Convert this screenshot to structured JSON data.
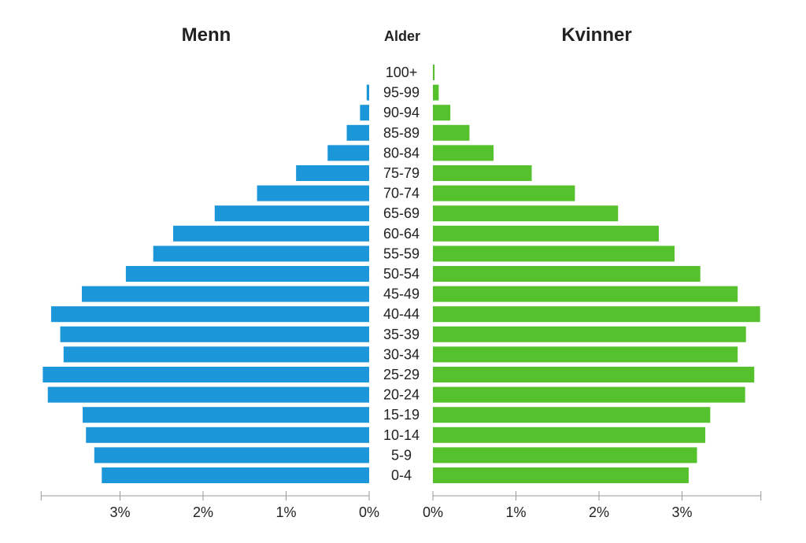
{
  "chart_data": {
    "type": "bar",
    "orientation": "horizontal-population-pyramid",
    "left_title": "Menn",
    "center_title": "Alder",
    "right_title": "Kvinner",
    "categories": [
      "0-4",
      "5-9",
      "10-14",
      "15-19",
      "20-24",
      "25-29",
      "30-34",
      "35-39",
      "40-44",
      "45-49",
      "50-54",
      "55-59",
      "60-64",
      "65-69",
      "70-74",
      "75-79",
      "80-84",
      "85-89",
      "90-94",
      "95-99",
      "100+"
    ],
    "series": [
      {
        "name": "Menn",
        "color": "#1a96d9",
        "values": [
          3.22,
          3.31,
          3.41,
          3.45,
          3.87,
          3.93,
          3.68,
          3.72,
          3.83,
          3.46,
          2.93,
          2.6,
          2.36,
          1.86,
          1.35,
          0.88,
          0.5,
          0.27,
          0.11,
          0.03,
          0.0
        ]
      },
      {
        "name": "Kvinner",
        "color": "#55c12d",
        "values": [
          3.08,
          3.18,
          3.28,
          3.34,
          3.76,
          3.87,
          3.67,
          3.77,
          3.94,
          3.67,
          3.22,
          2.91,
          2.72,
          2.23,
          1.71,
          1.19,
          0.73,
          0.44,
          0.21,
          0.07,
          0.02
        ]
      }
    ],
    "xlim": [
      0,
      3.95
    ],
    "left_ticks": [
      "3%",
      "2%",
      "1%",
      "0%"
    ],
    "right_ticks": [
      "0%",
      "1%",
      "2%",
      "3%"
    ],
    "tick_values": [
      3,
      2,
      1,
      0
    ],
    "right_tick_values": [
      0,
      1,
      2,
      3
    ]
  }
}
